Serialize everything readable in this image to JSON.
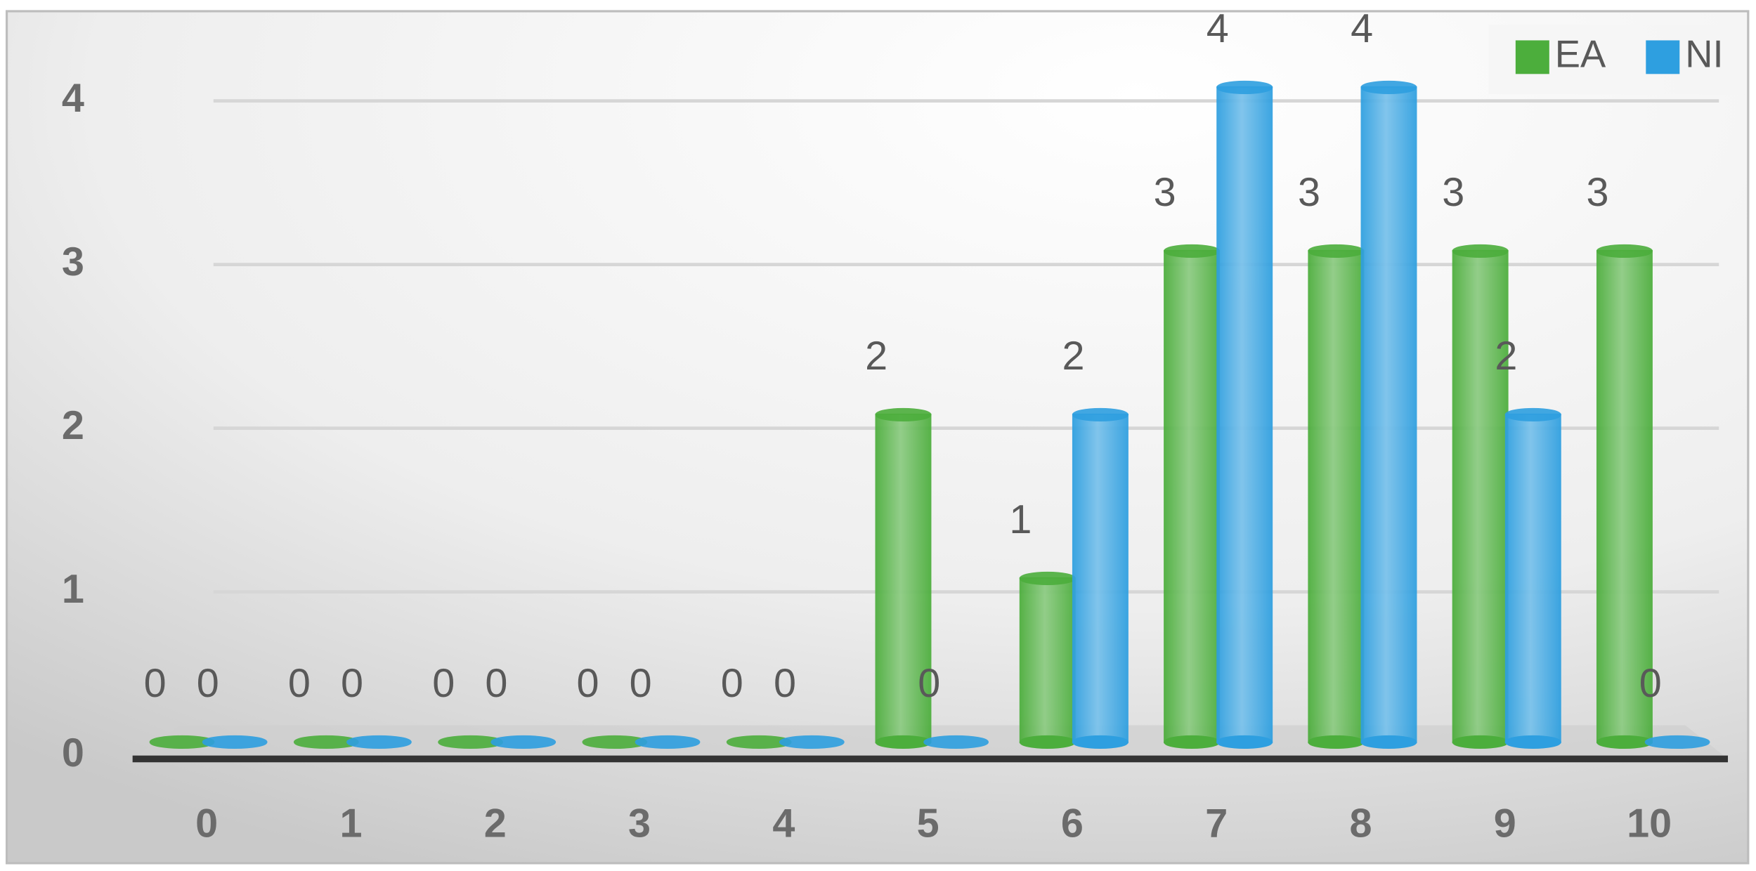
{
  "chart_data": {
    "type": "bar",
    "categories": [
      "0",
      "1",
      "2",
      "3",
      "4",
      "5",
      "6",
      "7",
      "8",
      "9",
      "10"
    ],
    "series": [
      {
        "name": "EA",
        "color": "#4cae3c",
        "values": [
          0,
          0,
          0,
          0,
          0,
          2,
          1,
          3,
          3,
          3,
          3
        ]
      },
      {
        "name": "NI",
        "color": "#2e9fe0",
        "values": [
          0,
          0,
          0,
          0,
          0,
          0,
          2,
          4,
          4,
          2,
          0
        ]
      }
    ],
    "ylim": [
      0,
      4
    ],
    "yticks": [
      0,
      1,
      2,
      3,
      4
    ],
    "grid": true,
    "legend": "top-right"
  }
}
